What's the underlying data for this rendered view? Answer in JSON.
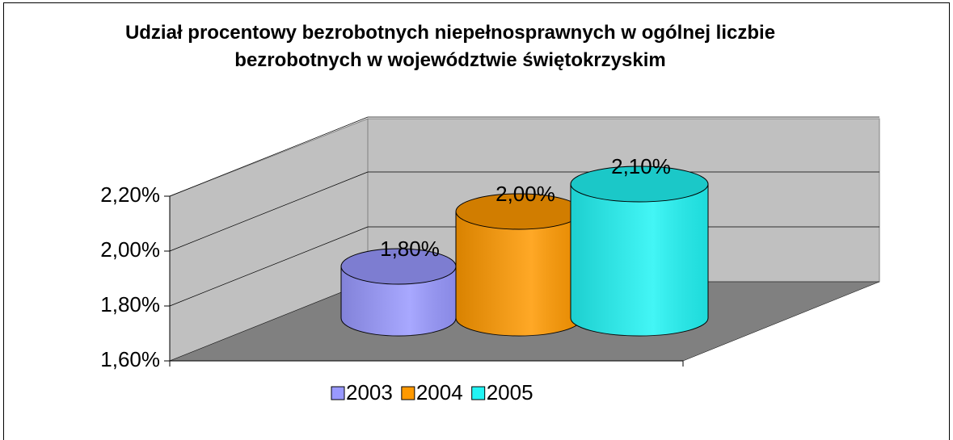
{
  "chart_data": {
    "type": "cylinder",
    "title": "Udział procentowy bezrobotnych niepełnosprawnych w ogólnej liczbie bezrobotnych w województwie świętokrzyskim",
    "series": [
      {
        "name": "2003",
        "color": "#9999ff",
        "values": [
          1.8
        ],
        "value_labels": [
          "1,80%"
        ]
      },
      {
        "name": "2004",
        "color": "#ff9900",
        "values": [
          2.0
        ],
        "value_labels": [
          "2,00%"
        ]
      },
      {
        "name": "2005",
        "color": "#22f4f4",
        "values": [
          2.1
        ],
        "value_labels": [
          "2,10%"
        ]
      }
    ],
    "ylim": [
      1.6,
      2.2
    ],
    "yticks": [
      {
        "value": 1.6,
        "label": "1,60%"
      },
      {
        "value": 1.8,
        "label": "1,80%"
      },
      {
        "value": 2.0,
        "label": "2,00%"
      },
      {
        "value": 2.2,
        "label": "2,20%"
      }
    ],
    "grid": true,
    "legend": "bottom"
  }
}
